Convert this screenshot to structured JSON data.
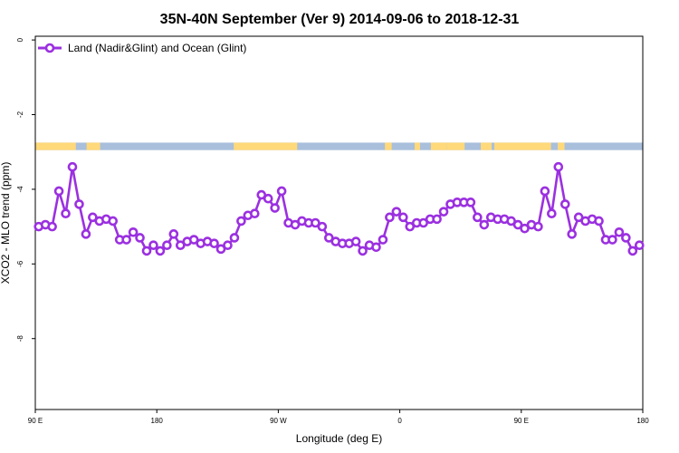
{
  "chart_data": {
    "type": "line",
    "title": "35N-40N September (Ver 9)   2014-09-06 to 2018-12-31",
    "xlabel": "Longitude (deg E)",
    "ylabel": "XCO2 - MLO trend (ppm)",
    "xlim": [
      90,
      540
    ],
    "ylim": [
      -9.9,
      0.1
    ],
    "x_ticks": [
      {
        "value": 90,
        "label": "90 E"
      },
      {
        "value": 180,
        "label": "180"
      },
      {
        "value": 270,
        "label": "90 W"
      },
      {
        "value": 360,
        "label": "0"
      },
      {
        "value": 450,
        "label": "90 E"
      },
      {
        "value": 540,
        "label": "180"
      }
    ],
    "y_ticks": [
      {
        "value": 0,
        "label": "0"
      },
      {
        "value": -2,
        "label": "-2"
      },
      {
        "value": -4,
        "label": "-4"
      },
      {
        "value": -6,
        "label": "-6"
      },
      {
        "value": -8,
        "label": "-8"
      }
    ],
    "legend_position": "top-left",
    "grid": false,
    "series": [
      {
        "name": "Land (Nadir&Glint) and Ocean (Glint)",
        "color": "#9b30e0",
        "x": [
          92.5,
          97.5,
          102.5,
          107.5,
          112.5,
          117.5,
          122.5,
          127.5,
          132.5,
          137.5,
          142.5,
          147.5,
          152.5,
          157.5,
          162.5,
          167.5,
          172.5,
          177.5,
          182.5,
          187.5,
          192.5,
          197.5,
          202.5,
          207.5,
          212.5,
          217.5,
          222.5,
          227.5,
          232.5,
          237.5,
          242.5,
          247.5,
          252.5,
          257.5,
          262.5,
          267.5,
          272.5,
          277.5,
          282.5,
          287.5,
          292.5,
          297.5,
          302.5,
          307.5,
          312.5,
          317.5,
          322.5,
          327.5,
          332.5,
          337.5,
          342.5,
          347.5,
          352.5,
          357.5,
          362.5,
          367.5,
          372.5,
          377.5,
          382.5,
          387.5,
          392.5,
          397.5,
          402.5,
          407.5,
          412.5,
          417.5,
          422.5,
          427.5,
          432.5,
          437.5,
          442.5,
          447.5,
          452.5,
          457.5,
          462.5,
          467.5,
          472.5,
          477.5,
          482.5,
          487.5,
          492.5,
          497.5,
          502.5,
          507.5,
          512.5,
          517.5,
          522.5,
          527.5,
          532.5,
          537.5
        ],
        "y": [
          -5.0,
          -4.95,
          -5.0,
          -4.05,
          -4.65,
          -3.4,
          -4.4,
          -5.2,
          -4.75,
          -4.85,
          -4.8,
          -4.85,
          -5.35,
          -5.35,
          -5.15,
          -5.3,
          -5.65,
          -5.5,
          -5.65,
          -5.5,
          -5.2,
          -5.5,
          -5.4,
          -5.35,
          -5.45,
          -5.4,
          -5.45,
          -5.6,
          -5.5,
          -5.3,
          -4.85,
          -4.7,
          -4.65,
          -4.15,
          -4.25,
          -4.5,
          -4.05,
          -4.9,
          -4.95,
          -4.85,
          -4.9,
          -4.9,
          -5.0,
          -5.3,
          -5.4,
          -5.45,
          -5.45,
          -5.4,
          -5.65,
          -5.5,
          -5.55,
          -5.35,
          -4.75,
          -4.6,
          -4.75,
          -5.0,
          -4.9,
          -4.9,
          -4.8,
          -4.8,
          -4.6,
          -4.4,
          -4.35,
          -4.35,
          -4.35,
          -4.75,
          -4.95,
          -4.75,
          -4.8,
          -4.8,
          -4.85,
          -4.95,
          -5.05,
          -4.95,
          -5.0,
          -4.05,
          -4.65,
          -3.4,
          -4.4,
          -5.2,
          -4.75,
          -4.85,
          -4.8,
          -4.85,
          -5.35,
          -5.35,
          -5.15,
          -5.3,
          -5.65,
          -5.5
        ]
      }
    ],
    "land_ocean_strip": {
      "y_range": [
        -2.75,
        -2.95
      ],
      "land_color": "#ffd97a",
      "ocean_color": "#a9bfdc",
      "land_ranges": [
        [
          90,
          120
        ],
        [
          128,
          138
        ],
        [
          237,
          284
        ],
        [
          349,
          354
        ],
        [
          371,
          375
        ],
        [
          383,
          395
        ],
        [
          395,
          408
        ],
        [
          420,
          428
        ],
        [
          430,
          472
        ],
        [
          477,
          482
        ]
      ]
    }
  }
}
